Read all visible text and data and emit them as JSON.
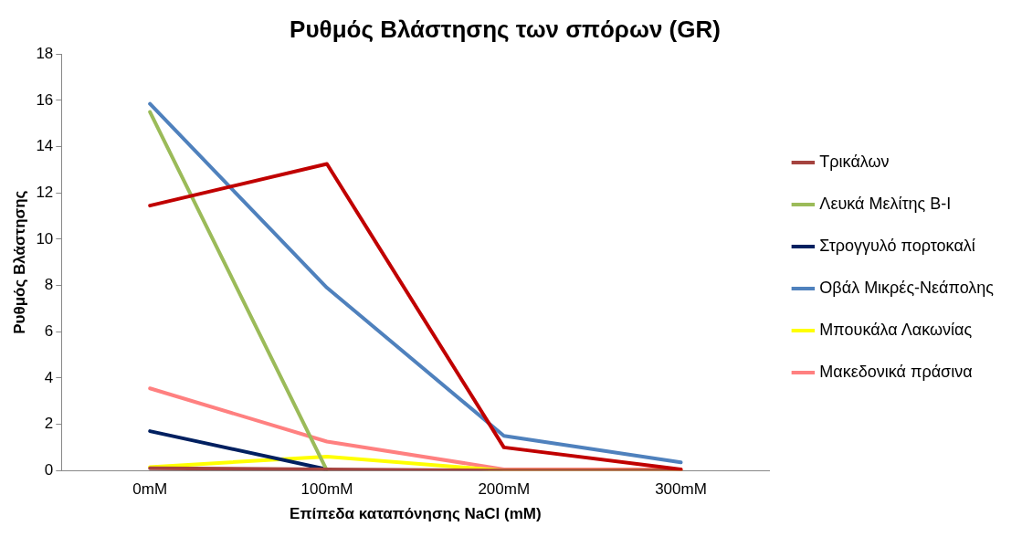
{
  "chart_data": {
    "type": "line",
    "title": "Ρυθμός Βλάστησης των σπόρων (GR)",
    "xlabel": "Επίπεδα καταπόνησης NaCl (mM)",
    "ylabel": "Ρυθμός Βλάστησης",
    "categories": [
      "0mM",
      "100mM",
      "200mM",
      "300mM"
    ],
    "series": [
      {
        "color": "#c00000",
        "values": [
          11.45,
          13.25,
          1.0,
          0.05
        ]
      },
      {
        "name": "Τρικάλων",
        "color": "#a5433f",
        "values": [
          0.1,
          0.05,
          0,
          0
        ]
      },
      {
        "name": "Λευκά Μελίτης B-I",
        "color": "#9bbb59",
        "values": [
          15.5,
          0,
          null,
          null
        ]
      },
      {
        "name": "Στρογγυλό πορτοκαλί",
        "color": "#002060",
        "values": [
          1.7,
          0.05,
          null,
          null
        ]
      },
      {
        "name": "Οβάλ Μικρές-Νεάπολης",
        "color": "#4f81bd",
        "values": [
          15.85,
          7.9,
          1.5,
          0.35
        ]
      },
      {
        "name": "Μπουκάλα Λακωνίας",
        "color": "#ffff00",
        "values": [
          0.15,
          0.6,
          0,
          0
        ]
      },
      {
        "name": "Μακεδονικά πράσινα",
        "color": "#ff8080",
        "values": [
          3.55,
          1.25,
          0.05,
          0.05
        ]
      }
    ],
    "ylim": [
      0,
      18
    ],
    "yticks": [
      0,
      2,
      4,
      6,
      8,
      10,
      12,
      14,
      16,
      18
    ],
    "grid": false,
    "legend": "right",
    "marker": "none",
    "line_style": "solid"
  }
}
